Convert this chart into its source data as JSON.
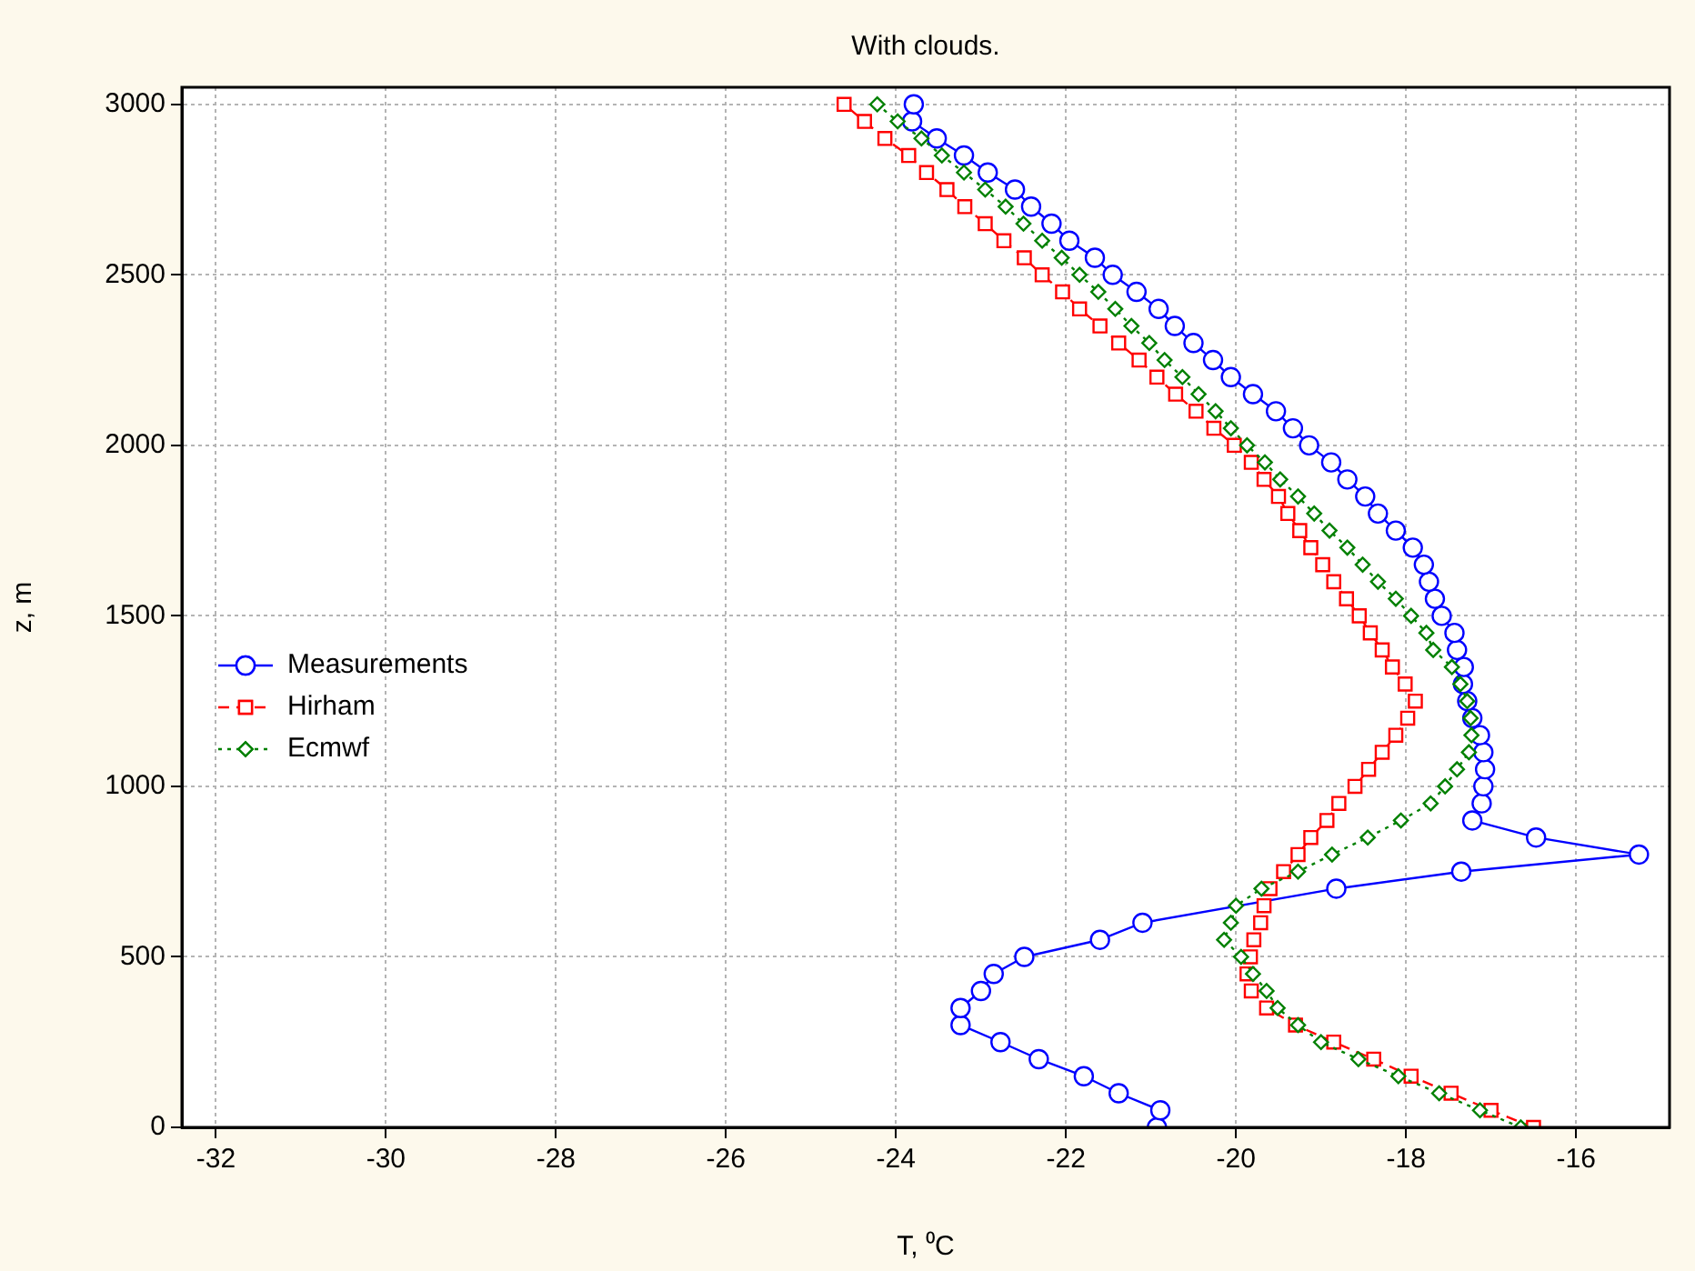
{
  "chart_data": {
    "type": "line",
    "title": "With clouds.",
    "xlabel": "T, ⁰C",
    "ylabel": "z, m",
    "xlim": [
      -32.4,
      -14.9
    ],
    "xticks": [
      -32,
      -30,
      -28,
      -26,
      -24,
      -22,
      -20,
      -18,
      -16
    ],
    "ylim": [
      0,
      3050
    ],
    "yticks": [
      0,
      500,
      1000,
      1500,
      2000,
      2500,
      3000
    ],
    "grid": true,
    "legend": "left",
    "series": [
      {
        "name": "Measurements",
        "color": "#0000ff",
        "marker": "circle",
        "line_style": "solid",
        "x": [
          -20.93,
          -20.89,
          -21.38,
          -21.79,
          -22.32,
          -22.77,
          -23.24,
          -23.24,
          -23.0,
          -22.85,
          -22.49,
          -21.6,
          -21.1,
          -18.82,
          -17.35,
          -15.26,
          -16.47,
          -17.22,
          -17.11,
          -17.09,
          -17.07,
          -17.09,
          -17.13,
          -17.22,
          -17.28,
          -17.33,
          -17.32,
          -17.4,
          -17.43,
          -17.58,
          -17.66,
          -17.73,
          -17.79,
          -17.92,
          -18.12,
          -18.33,
          -18.48,
          -18.69,
          -18.88,
          -19.14,
          -19.33,
          -19.53,
          -19.8,
          -20.06,
          -20.27,
          -20.5,
          -20.72,
          -20.91,
          -21.17,
          -21.45,
          -21.66,
          -21.96,
          -22.17,
          -22.41,
          -22.6,
          -22.92,
          -23.2,
          -23.52,
          -23.81,
          -23.79
        ],
        "values": [
          0,
          50,
          100,
          150,
          200,
          250,
          300,
          350,
          400,
          450,
          500,
          550,
          600,
          700,
          750,
          800,
          850,
          900,
          950,
          1000,
          1050,
          1100,
          1150,
          1200,
          1250,
          1300,
          1350,
          1400,
          1450,
          1500,
          1550,
          1600,
          1650,
          1700,
          1750,
          1800,
          1850,
          1900,
          1950,
          2000,
          2050,
          2100,
          2150,
          2200,
          2250,
          2300,
          2350,
          2400,
          2450,
          2500,
          2550,
          2600,
          2650,
          2700,
          2750,
          2800,
          2850,
          2900,
          2950,
          3000
        ]
      },
      {
        "name": "Hirham",
        "color": "#ff0000",
        "marker": "square",
        "line_style": "dashed",
        "x": [
          -16.5,
          -17.0,
          -17.47,
          -17.94,
          -18.38,
          -18.85,
          -19.3,
          -19.64,
          -19.82,
          -19.87,
          -19.83,
          -19.79,
          -19.71,
          -19.67,
          -19.6,
          -19.44,
          -19.27,
          -19.12,
          -18.93,
          -18.79,
          -18.6,
          -18.44,
          -18.28,
          -18.12,
          -17.98,
          -17.89,
          -18.01,
          -18.16,
          -18.28,
          -18.42,
          -18.55,
          -18.7,
          -18.85,
          -18.98,
          -19.12,
          -19.25,
          -19.39,
          -19.5,
          -19.67,
          -19.82,
          -20.02,
          -20.26,
          -20.47,
          -20.71,
          -20.93,
          -21.14,
          -21.38,
          -21.6,
          -21.84,
          -22.04,
          -22.28,
          -22.49,
          -22.73,
          -22.95,
          -23.19,
          -23.4,
          -23.64,
          -23.85,
          -24.13,
          -24.37,
          -24.61
        ],
        "values": [
          0,
          50,
          100,
          150,
          200,
          250,
          300,
          350,
          400,
          450,
          500,
          550,
          600,
          650,
          700,
          750,
          800,
          850,
          900,
          950,
          1000,
          1050,
          1100,
          1150,
          1200,
          1250,
          1300,
          1350,
          1400,
          1450,
          1500,
          1550,
          1600,
          1650,
          1700,
          1750,
          1800,
          1850,
          1900,
          1950,
          2000,
          2050,
          2100,
          2150,
          2200,
          2250,
          2300,
          2350,
          2400,
          2450,
          2500,
          2550,
          2600,
          2650,
          2700,
          2750,
          2800,
          2850,
          2900,
          2950,
          3000
        ]
      },
      {
        "name": "Ecmwf",
        "color": "#008000",
        "marker": "diamond",
        "line_style": "dotted",
        "x": [
          -16.65,
          -17.13,
          -17.61,
          -18.09,
          -18.56,
          -19.0,
          -19.27,
          -19.51,
          -19.64,
          -19.8,
          -19.94,
          -20.14,
          -20.06,
          -20.0,
          -19.7,
          -19.27,
          -18.87,
          -18.45,
          -18.06,
          -17.71,
          -17.54,
          -17.4,
          -17.26,
          -17.23,
          -17.24,
          -17.28,
          -17.36,
          -17.46,
          -17.68,
          -17.76,
          -17.94,
          -18.12,
          -18.33,
          -18.51,
          -18.69,
          -18.9,
          -19.08,
          -19.27,
          -19.48,
          -19.66,
          -19.87,
          -20.06,
          -20.24,
          -20.44,
          -20.63,
          -20.84,
          -21.02,
          -21.23,
          -21.42,
          -21.62,
          -21.84,
          -22.05,
          -22.28,
          -22.5,
          -22.71,
          -22.95,
          -23.2,
          -23.46,
          -23.7,
          -23.98,
          -24.22
        ],
        "values": [
          0,
          50,
          100,
          150,
          200,
          250,
          300,
          350,
          400,
          450,
          500,
          550,
          600,
          650,
          700,
          750,
          800,
          850,
          900,
          950,
          1000,
          1050,
          1100,
          1150,
          1200,
          1250,
          1300,
          1350,
          1400,
          1450,
          1500,
          1550,
          1600,
          1650,
          1700,
          1750,
          1800,
          1850,
          1900,
          1950,
          2000,
          2050,
          2100,
          2150,
          2200,
          2250,
          2300,
          2350,
          2400,
          2450,
          2500,
          2550,
          2600,
          2650,
          2700,
          2750,
          2800,
          2850,
          2900,
          2950,
          3000
        ]
      }
    ]
  }
}
